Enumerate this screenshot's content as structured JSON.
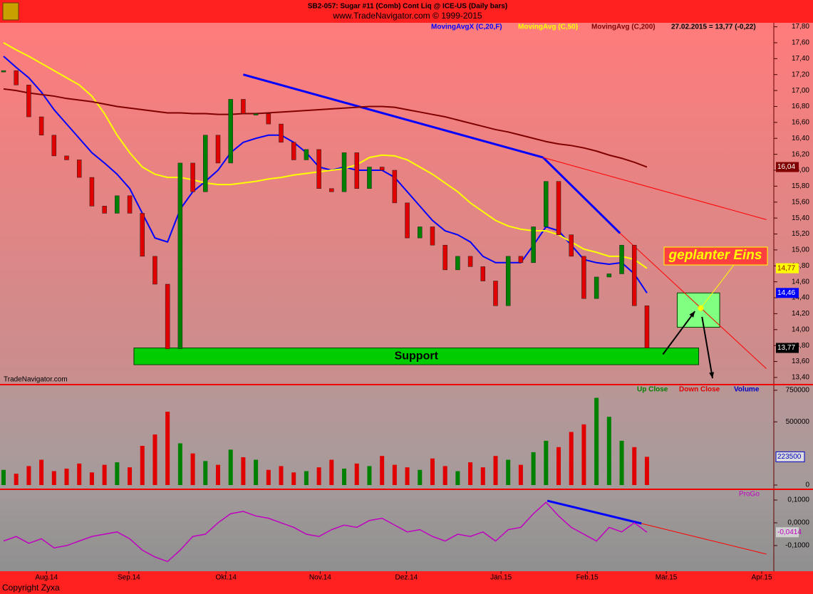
{
  "header": {
    "title": "SB2-057:  Sugar #11 (Comb) Cont Liq @ ICE-US  (Daily bars)",
    "subtitle": "www.TradeNavigator.com © 1999-2015",
    "watermark": "TradeNavigator.com",
    "copyright": "Copyright Zyxa"
  },
  "chart_data": [
    {
      "type": "candlestick",
      "legend_status": "27.02.2015 = 13,77 (-0,22)",
      "x": [
        0,
        3,
        6,
        9,
        12,
        15,
        18,
        21,
        24,
        27,
        30,
        33,
        36,
        39,
        42,
        45,
        48,
        51,
        54,
        57,
        60,
        63,
        66,
        69,
        72,
        75,
        78,
        81,
        84,
        87,
        90,
        93,
        96,
        99,
        102,
        105,
        108,
        111,
        114,
        117,
        120,
        123,
        126,
        129,
        132,
        135,
        138,
        141,
        144,
        147,
        150,
        153
      ],
      "close": [
        17.25,
        17.07,
        16.67,
        16.44,
        16.18,
        16.13,
        15.91,
        15.55,
        15.46,
        15.68,
        15.46,
        14.92,
        14.57,
        13.76,
        16.09,
        15.73,
        16.44,
        16.09,
        16.89,
        16.71,
        16.71,
        16.58,
        16.35,
        16.13,
        16.26,
        15.77,
        15.73,
        16.22,
        15.77,
        16.04,
        16.0,
        15.59,
        15.15,
        15.29,
        15.06,
        14.75,
        14.92,
        14.79,
        14.61,
        14.3,
        14.92,
        14.84,
        15.29,
        15.86,
        15.19,
        14.92,
        14.39,
        14.66,
        14.7,
        15.06,
        14.3,
        13.77
      ],
      "up_color": "#008000",
      "down_color": "#e00000",
      "close_last_label": {
        "value": 13.77,
        "label": "13,77"
      },
      "series": [
        {
          "name": "MovingAvgX (C,20,F)",
          "color": "#0000ff",
          "last_label": {
            "value": 14.46,
            "label": "14,46"
          },
          "values": [
            17.43,
            17.29,
            17.16,
            16.98,
            16.76,
            16.58,
            16.4,
            16.22,
            16.09,
            15.95,
            15.77,
            15.46,
            15.15,
            15.1,
            15.51,
            15.73,
            15.86,
            16.0,
            16.22,
            16.35,
            16.4,
            16.44,
            16.44,
            16.35,
            16.22,
            16.04,
            16.0,
            16.04,
            16.0,
            16.0,
            16.0,
            15.91,
            15.73,
            15.55,
            15.37,
            15.24,
            15.19,
            15.1,
            14.92,
            14.84,
            14.84,
            14.84,
            15.06,
            15.29,
            15.24,
            15.06,
            14.88,
            14.84,
            14.82,
            14.84,
            14.7,
            14.46
          ]
        },
        {
          "name": "MovingAvg (C,50)",
          "color": "#ffff00",
          "last_label": {
            "value": 14.77,
            "label": "14,77"
          },
          "values": [
            17.6,
            17.51,
            17.43,
            17.34,
            17.25,
            17.16,
            17.07,
            16.93,
            16.71,
            16.44,
            16.22,
            16.04,
            15.95,
            15.91,
            15.91,
            15.88,
            15.84,
            15.82,
            15.82,
            15.84,
            15.86,
            15.89,
            15.91,
            15.94,
            15.96,
            15.98,
            16.0,
            16.02,
            16.07,
            16.16,
            16.19,
            16.18,
            16.13,
            16.04,
            15.95,
            15.84,
            15.73,
            15.59,
            15.48,
            15.37,
            15.3,
            15.26,
            15.24,
            15.24,
            15.19,
            15.1,
            15.01,
            14.97,
            14.92,
            14.92,
            14.88,
            14.77
          ]
        },
        {
          "name": "MovingAvg (C,200)",
          "color": "#800000",
          "last_label": {
            "value": 16.04,
            "label": "16,04"
          },
          "values": [
            17.02,
            17.0,
            16.97,
            16.95,
            16.93,
            16.9,
            16.88,
            16.86,
            16.83,
            16.8,
            16.78,
            16.76,
            16.74,
            16.72,
            16.72,
            16.71,
            16.71,
            16.7,
            16.7,
            16.71,
            16.71,
            16.72,
            16.73,
            16.74,
            16.75,
            16.76,
            16.77,
            16.78,
            16.79,
            16.8,
            16.8,
            16.79,
            16.76,
            16.73,
            16.7,
            16.67,
            16.63,
            16.59,
            16.55,
            16.51,
            16.48,
            16.44,
            16.4,
            16.36,
            16.33,
            16.31,
            16.28,
            16.24,
            16.19,
            16.15,
            16.1,
            16.04
          ]
        }
      ],
      "trendlines": [
        {
          "x": [
            57,
            128.3
          ],
          "y": [
            17.2,
            16.16
          ],
          "color": "#0000ff"
        },
        {
          "x": [
            128.3,
            146.6
          ],
          "y": [
            16.16,
            15.21
          ],
          "color": "#0000ff"
        },
        {
          "x": [
            128.3,
            181.4
          ],
          "y": [
            16.16,
            15.38
          ],
          "color": "#ff0000"
        },
        {
          "x": [
            146.6,
            181.4
          ],
          "y": [
            15.21,
            13.51
          ],
          "color": "#ff0000"
        }
      ],
      "zones": [
        {
          "label": "Support",
          "x": [
            31,
            165.3
          ],
          "y": [
            13.56,
            13.77
          ],
          "color": "#00cc00"
        },
        {
          "x": [
            160.2,
            170.3
          ],
          "y": [
            14.03,
            14.46
          ],
          "color": "#80ff80"
        }
      ],
      "arrows": [
        {
          "x": [
            156.8,
            164.4
          ],
          "y": [
            13.69,
            14.23
          ]
        },
        {
          "x": [
            166.1,
            168.6
          ],
          "y": [
            14.16,
            13.39
          ]
        }
      ],
      "target": {
        "label": "geplanter Eins",
        "x": 165.8,
        "y": 14.27
      },
      "xlim": [
        0,
        183
      ],
      "ylim": [
        13.31,
        17.85
      ],
      "yticks": [
        {
          "value": 17.8,
          "label": "17,80"
        },
        {
          "value": 17.6,
          "label": "17,60"
        },
        {
          "value": 17.4,
          "label": "17,40"
        },
        {
          "value": 17.2,
          "label": "17,20"
        },
        {
          "value": 17.0,
          "label": "17,00"
        },
        {
          "value": 16.8,
          "label": "16,80"
        },
        {
          "value": 16.6,
          "label": "16,60"
        },
        {
          "value": 16.4,
          "label": "16,40"
        },
        {
          "value": 16.2,
          "label": "16,20"
        },
        {
          "value": 16.0,
          "label": "16,00"
        },
        {
          "value": 15.8,
          "label": "15,80"
        },
        {
          "value": 15.6,
          "label": "15,60"
        },
        {
          "value": 15.4,
          "label": "15,40"
        },
        {
          "value": 15.2,
          "label": "15,20"
        },
        {
          "value": 15.0,
          "label": "15,00"
        },
        {
          "value": 14.8,
          "label": "14,80"
        },
        {
          "value": 14.6,
          "label": "14,60"
        },
        {
          "value": 14.4,
          "label": "14,40"
        },
        {
          "value": 14.2,
          "label": "14,20"
        },
        {
          "value": 14.0,
          "label": "14,00"
        },
        {
          "value": 13.8,
          "label": "13,80"
        },
        {
          "value": 13.6,
          "label": "13,60"
        },
        {
          "value": 13.4,
          "label": "13,40"
        }
      ]
    },
    {
      "type": "bar",
      "legend": [
        {
          "name": "Up Close",
          "color": "#008000"
        },
        {
          "name": "Down Close",
          "color": "#e00000"
        },
        {
          "name": "Volume",
          "color": "#0000c0"
        }
      ],
      "values": [
        120000,
        90000,
        150000,
        200000,
        110000,
        130000,
        170000,
        100000,
        160000,
        180000,
        140000,
        310000,
        400000,
        580000,
        330000,
        250000,
        190000,
        160000,
        280000,
        220000,
        200000,
        120000,
        150000,
        100000,
        110000,
        140000,
        200000,
        130000,
        170000,
        150000,
        230000,
        160000,
        140000,
        120000,
        210000,
        150000,
        110000,
        180000,
        140000,
        230000,
        200000,
        160000,
        260000,
        350000,
        300000,
        420000,
        480000,
        690000,
        540000,
        350000,
        300000,
        223500
      ],
      "last_label": {
        "value": 223500,
        "label": "223500"
      },
      "xlim": [
        0,
        183
      ],
      "ylim": [
        -28000,
        789000
      ],
      "yticks": [
        750000,
        500000,
        0
      ]
    },
    {
      "type": "line",
      "series": [
        {
          "name": "ProGo",
          "color": "#c000c0",
          "last_label": {
            "value": -0.0414,
            "label": "-0,0414"
          },
          "values": [
            -0.08,
            -0.06,
            -0.09,
            -0.07,
            -0.11,
            -0.1,
            -0.08,
            -0.06,
            -0.05,
            -0.04,
            -0.07,
            -0.12,
            -0.15,
            -0.17,
            -0.12,
            -0.06,
            -0.05,
            0.0,
            0.04,
            0.05,
            0.03,
            0.02,
            0.0,
            -0.02,
            -0.05,
            -0.06,
            -0.03,
            -0.01,
            -0.02,
            0.01,
            0.02,
            -0.01,
            -0.04,
            -0.03,
            -0.06,
            -0.08,
            -0.05,
            -0.06,
            -0.04,
            -0.08,
            -0.03,
            -0.02,
            0.04,
            0.09,
            0.03,
            -0.02,
            -0.05,
            -0.08,
            -0.02,
            -0.04,
            0.0,
            -0.0414
          ]
        }
      ],
      "trendlines": [
        {
          "x": [
            129.3,
            151.7
          ],
          "y": [
            0.097,
            -0.003
          ],
          "color": "#0000ff"
        },
        {
          "x": [
            151.7,
            181.4
          ],
          "y": [
            -0.003,
            -0.1375
          ],
          "color": "#ff0000"
        }
      ],
      "xlim": [
        0,
        183
      ],
      "ylim": [
        -0.2125,
        0.144
      ],
      "yticks": [
        {
          "value": 0.1,
          "label": "0,1000"
        },
        {
          "value": 0,
          "label": "0,0000"
        },
        {
          "value": -0.1,
          "label": "-0,1000"
        }
      ],
      "xticks": [
        {
          "value": 10.2,
          "label": "Aug.14"
        },
        {
          "value": 29.8,
          "label": "Sep.14"
        },
        {
          "value": 52.9,
          "label": "Okt.14"
        },
        {
          "value": 75.3,
          "label": "Nov.14"
        },
        {
          "value": 95.8,
          "label": "Dez.14"
        },
        {
          "value": 118.3,
          "label": "Jän.15"
        },
        {
          "value": 138.8,
          "label": "Feb.15"
        },
        {
          "value": 157.6,
          "label": "Mär.15"
        },
        {
          "value": 180.3,
          "label": "Apr.15"
        }
      ]
    }
  ]
}
